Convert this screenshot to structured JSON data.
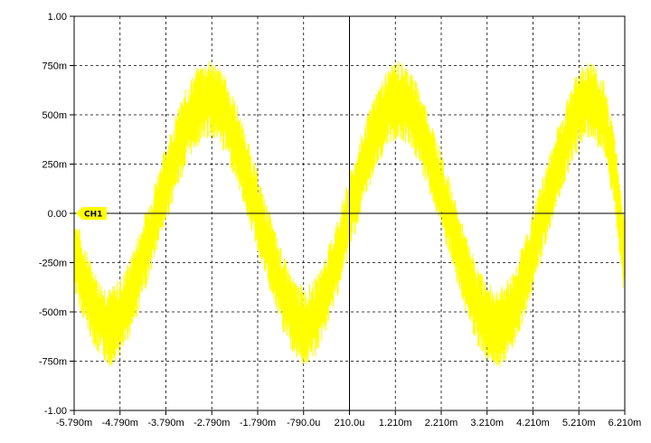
{
  "chart_data": {
    "type": "line",
    "xlim": [
      -5.79,
      6.21
    ],
    "ylim": [
      -1.0,
      1.0
    ],
    "x_unit": "ms",
    "grid": true,
    "x_ticks": [
      {
        "value": -5.79,
        "label": "-5.790m"
      },
      {
        "value": -4.79,
        "label": "-4.790m"
      },
      {
        "value": -3.79,
        "label": "-3.790m"
      },
      {
        "value": -2.79,
        "label": "-2.790m"
      },
      {
        "value": -1.79,
        "label": "-1.790m"
      },
      {
        "value": -0.79,
        "label": "-790.0u"
      },
      {
        "value": 0.21,
        "label": "210.0u"
      },
      {
        "value": 1.21,
        "label": "1.210m"
      },
      {
        "value": 2.21,
        "label": "2.210m"
      },
      {
        "value": 3.21,
        "label": "3.210m"
      },
      {
        "value": 4.21,
        "label": "4.210m"
      },
      {
        "value": 5.21,
        "label": "5.210m"
      },
      {
        "value": 6.21,
        "label": "6.210m"
      }
    ],
    "y_ticks": [
      {
        "value": 1.0,
        "label": "1.00"
      },
      {
        "value": 0.75,
        "label": "750m"
      },
      {
        "value": 0.5,
        "label": "500m"
      },
      {
        "value": 0.25,
        "label": "250m"
      },
      {
        "value": 0.0,
        "label": "0.00"
      },
      {
        "value": -0.25,
        "label": "-250m"
      },
      {
        "value": -0.5,
        "label": "-500m"
      },
      {
        "value": -0.75,
        "label": "-750m"
      },
      {
        "value": -1.0,
        "label": "-1.00"
      }
    ],
    "series": [
      {
        "name": "CH1",
        "color": "#ffff00",
        "x": [
          -5.79,
          -5.5,
          -5.25,
          -5.0,
          -4.75,
          -4.5,
          -4.25,
          -4.0,
          -3.75,
          -3.5,
          -3.25,
          -3.0,
          -2.75,
          -2.5,
          -2.25,
          -2.0,
          -1.75,
          -1.5,
          -1.25,
          -1.0,
          -0.75,
          -0.5,
          -0.25,
          0.0,
          0.25,
          0.5,
          0.75,
          1.0,
          1.25,
          1.5,
          1.75,
          2.0,
          2.25,
          2.5,
          2.75,
          3.0,
          3.25,
          3.5,
          3.75,
          4.0,
          4.25,
          4.5,
          4.75,
          5.0,
          5.25,
          5.5,
          5.75,
          6.0,
          6.21
        ],
        "y": [
          -0.2,
          -0.4,
          -0.53,
          -0.58,
          -0.52,
          -0.38,
          -0.2,
          -0.01,
          0.18,
          0.35,
          0.49,
          0.57,
          0.58,
          0.5,
          0.36,
          0.17,
          -0.03,
          -0.22,
          -0.4,
          -0.53,
          -0.58,
          -0.52,
          -0.37,
          -0.18,
          0.03,
          0.22,
          0.4,
          0.52,
          0.58,
          0.55,
          0.43,
          0.27,
          0.08,
          -0.12,
          -0.31,
          -0.47,
          -0.56,
          -0.58,
          -0.5,
          -0.35,
          -0.15,
          0.05,
          0.25,
          0.42,
          0.55,
          0.58,
          0.48,
          0.2,
          -0.25
        ]
      }
    ],
    "noise_amplitude": 0.2,
    "channel_marker": {
      "label": "CH1",
      "value": 0.0,
      "color": "#ffff00"
    },
    "colors": {
      "background": "#ffffff",
      "grid": "#000000",
      "axis": "#000000",
      "trace": "#ffff00"
    }
  }
}
